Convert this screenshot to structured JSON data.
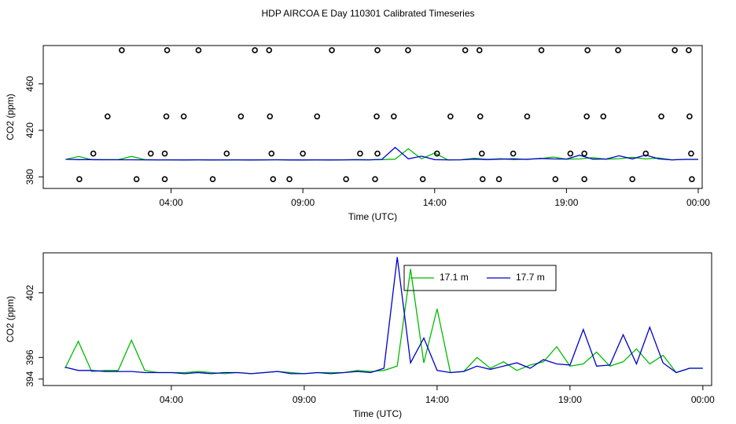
{
  "title": "HDP AIRCOA E  Day 110301  Calibrated Timeseries",
  "chart_data": [
    {
      "type": "scatter",
      "xlabel": "Time (UTC)",
      "ylabel": "CO2 (ppm)",
      "xlim": [
        -0.85,
        24.15
      ],
      "ylim": [
        370,
        493
      ],
      "xticks": [
        {
          "value": 4,
          "label": "04:00"
        },
        {
          "value": 9,
          "label": "09:00"
        },
        {
          "value": 14,
          "label": "14:00"
        },
        {
          "value": 19,
          "label": "19:00"
        },
        {
          "value": 24,
          "label": "00:00"
        }
      ],
      "yticks": [
        380,
        420,
        460
      ],
      "x": [
        0,
        0.5,
        1,
        1.5,
        2,
        2.5,
        3,
        3.5,
        4,
        4.5,
        5,
        5.5,
        6,
        6.5,
        7,
        7.5,
        8,
        8.5,
        9,
        9.5,
        10,
        10.5,
        11,
        11.5,
        12,
        12.5,
        13,
        13.5,
        14,
        14.5,
        15,
        15.5,
        16,
        16.5,
        17,
        17.5,
        18,
        18.5,
        19,
        19.5,
        20,
        20.5,
        21,
        21.5,
        22,
        22.5,
        23,
        23.5,
        24
      ],
      "points": {
        "color": "#000000",
        "x": [
          2.13,
          3.85,
          5.04,
          7.18,
          7.72,
          10.1,
          11.83,
          12.99,
          15.16,
          15.7,
          18.05,
          19.8,
          20.96,
          23.11,
          23.64,
          1.59,
          3.82,
          4.48,
          6.65,
          7.75,
          9.54,
          11.8,
          12.45,
          14.6,
          15.73,
          17.51,
          19.77,
          20.4,
          22.6,
          23.67,
          1.05,
          3.23,
          3.76,
          6.11,
          7.81,
          9.0,
          11.17,
          11.83,
          14.09,
          15.79,
          16.98,
          19.15,
          19.68,
          22.01,
          23.73,
          0.52,
          2.69,
          3.76,
          5.58,
          7.87,
          8.49,
          10.64,
          11.74,
          13.55,
          15.82,
          16.44,
          18.58,
          19.68,
          21.5,
          23.76
        ],
        "y": [
          489,
          489,
          489,
          489,
          489,
          489,
          489,
          489,
          489,
          489,
          489,
          489,
          489,
          489,
          489,
          432,
          432,
          432,
          432,
          432,
          432,
          432,
          432,
          432,
          432,
          432,
          432,
          432,
          432,
          432,
          400,
          400,
          400,
          400,
          400,
          400,
          400,
          400,
          400,
          400,
          400,
          400,
          400,
          400,
          400,
          378,
          378,
          378,
          378,
          378,
          378,
          378,
          378,
          378,
          378,
          378,
          378,
          378,
          378,
          378
        ]
      },
      "series": [
        {
          "color": "#00bb00",
          "values": [
            395.0,
            397.5,
            394.7,
            394.8,
            394.8,
            397.6,
            394.8,
            394.6,
            394.6,
            394.6,
            394.7,
            394.6,
            394.5,
            394.6,
            394.5,
            394.6,
            394.7,
            394.6,
            394.5,
            394.6,
            394.6,
            394.6,
            394.8,
            394.7,
            394.8,
            395.2,
            404.2,
            395.5,
            400.5,
            394.6,
            394.7,
            396.0,
            395.0,
            395.6,
            394.8,
            395.3,
            395.6,
            397.0,
            395.2,
            395.4,
            396.5,
            395.2,
            395.6,
            396.8,
            395.4,
            396.2,
            394.6,
            395.0,
            395.0
          ]
        },
        {
          "color": "#0000cc",
          "values": [
            395.1,
            394.8,
            394.8,
            394.7,
            394.7,
            394.7,
            394.6,
            394.6,
            394.6,
            394.5,
            394.6,
            394.5,
            394.6,
            394.6,
            394.5,
            394.6,
            394.7,
            394.5,
            394.5,
            394.6,
            394.5,
            394.6,
            394.7,
            394.6,
            395.0,
            405.3,
            395.5,
            397.8,
            394.8,
            394.6,
            394.7,
            395.2,
            394.9,
            395.2,
            395.5,
            395.0,
            395.8,
            395.4,
            395.3,
            398.6,
            395.2,
            395.3,
            398.1,
            395.4,
            398.8,
            395.5,
            394.6,
            395.0,
            395.0
          ]
        }
      ]
    },
    {
      "type": "line",
      "xlabel": "Time (UTC)",
      "ylabel": "CO2 (ppm)",
      "legend": "top",
      "xlim": [
        -0.82,
        24.33
      ],
      "ylim": [
        393.4,
        405.7
      ],
      "xticks": [
        {
          "value": 4,
          "label": "04:00"
        },
        {
          "value": 9,
          "label": "09:00"
        },
        {
          "value": 14,
          "label": "14:00"
        },
        {
          "value": 19,
          "label": "19:00"
        },
        {
          "value": 24,
          "label": "00:00"
        }
      ],
      "yticks": [
        394,
        396,
        402
      ],
      "x": [
        0,
        0.5,
        1,
        1.5,
        2,
        2.5,
        3,
        3.5,
        4,
        4.5,
        5,
        5.5,
        6,
        6.5,
        7,
        7.5,
        8,
        8.5,
        9,
        9.5,
        10,
        10.5,
        11,
        11.5,
        12,
        12.5,
        13,
        13.5,
        14,
        14.5,
        15,
        15.5,
        16,
        16.5,
        17,
        17.5,
        18,
        18.5,
        19,
        19.5,
        20,
        20.5,
        21,
        21.5,
        22,
        22.5,
        23,
        23.5,
        24
      ],
      "series": [
        {
          "name": "17.1 m",
          "color": "#00bb00",
          "values": [
            395.0,
            397.5,
            394.7,
            394.8,
            394.8,
            397.6,
            394.8,
            394.6,
            394.6,
            394.6,
            394.7,
            394.6,
            394.5,
            394.6,
            394.5,
            394.6,
            394.7,
            394.6,
            394.5,
            394.6,
            394.6,
            394.6,
            394.8,
            394.7,
            394.8,
            395.2,
            404.2,
            395.5,
            400.5,
            394.6,
            394.7,
            396.0,
            395.0,
            395.6,
            394.8,
            395.3,
            395.6,
            397.0,
            395.2,
            395.4,
            396.5,
            395.2,
            395.6,
            396.8,
            395.4,
            396.2,
            394.6,
            395.0,
            395.0
          ]
        },
        {
          "name": "17.7 m",
          "color": "#0000cc",
          "values": [
            395.1,
            394.8,
            394.8,
            394.7,
            394.7,
            394.7,
            394.6,
            394.6,
            394.6,
            394.5,
            394.6,
            394.5,
            394.6,
            394.6,
            394.5,
            394.6,
            394.7,
            394.5,
            394.5,
            394.6,
            394.5,
            394.6,
            394.7,
            394.6,
            395.0,
            405.3,
            395.5,
            397.8,
            394.8,
            394.6,
            394.7,
            395.2,
            394.9,
            395.2,
            395.5,
            395.0,
            395.8,
            395.4,
            395.3,
            398.6,
            395.2,
            395.3,
            398.1,
            395.4,
            398.8,
            395.5,
            394.6,
            395.0,
            395.0
          ]
        }
      ]
    }
  ]
}
